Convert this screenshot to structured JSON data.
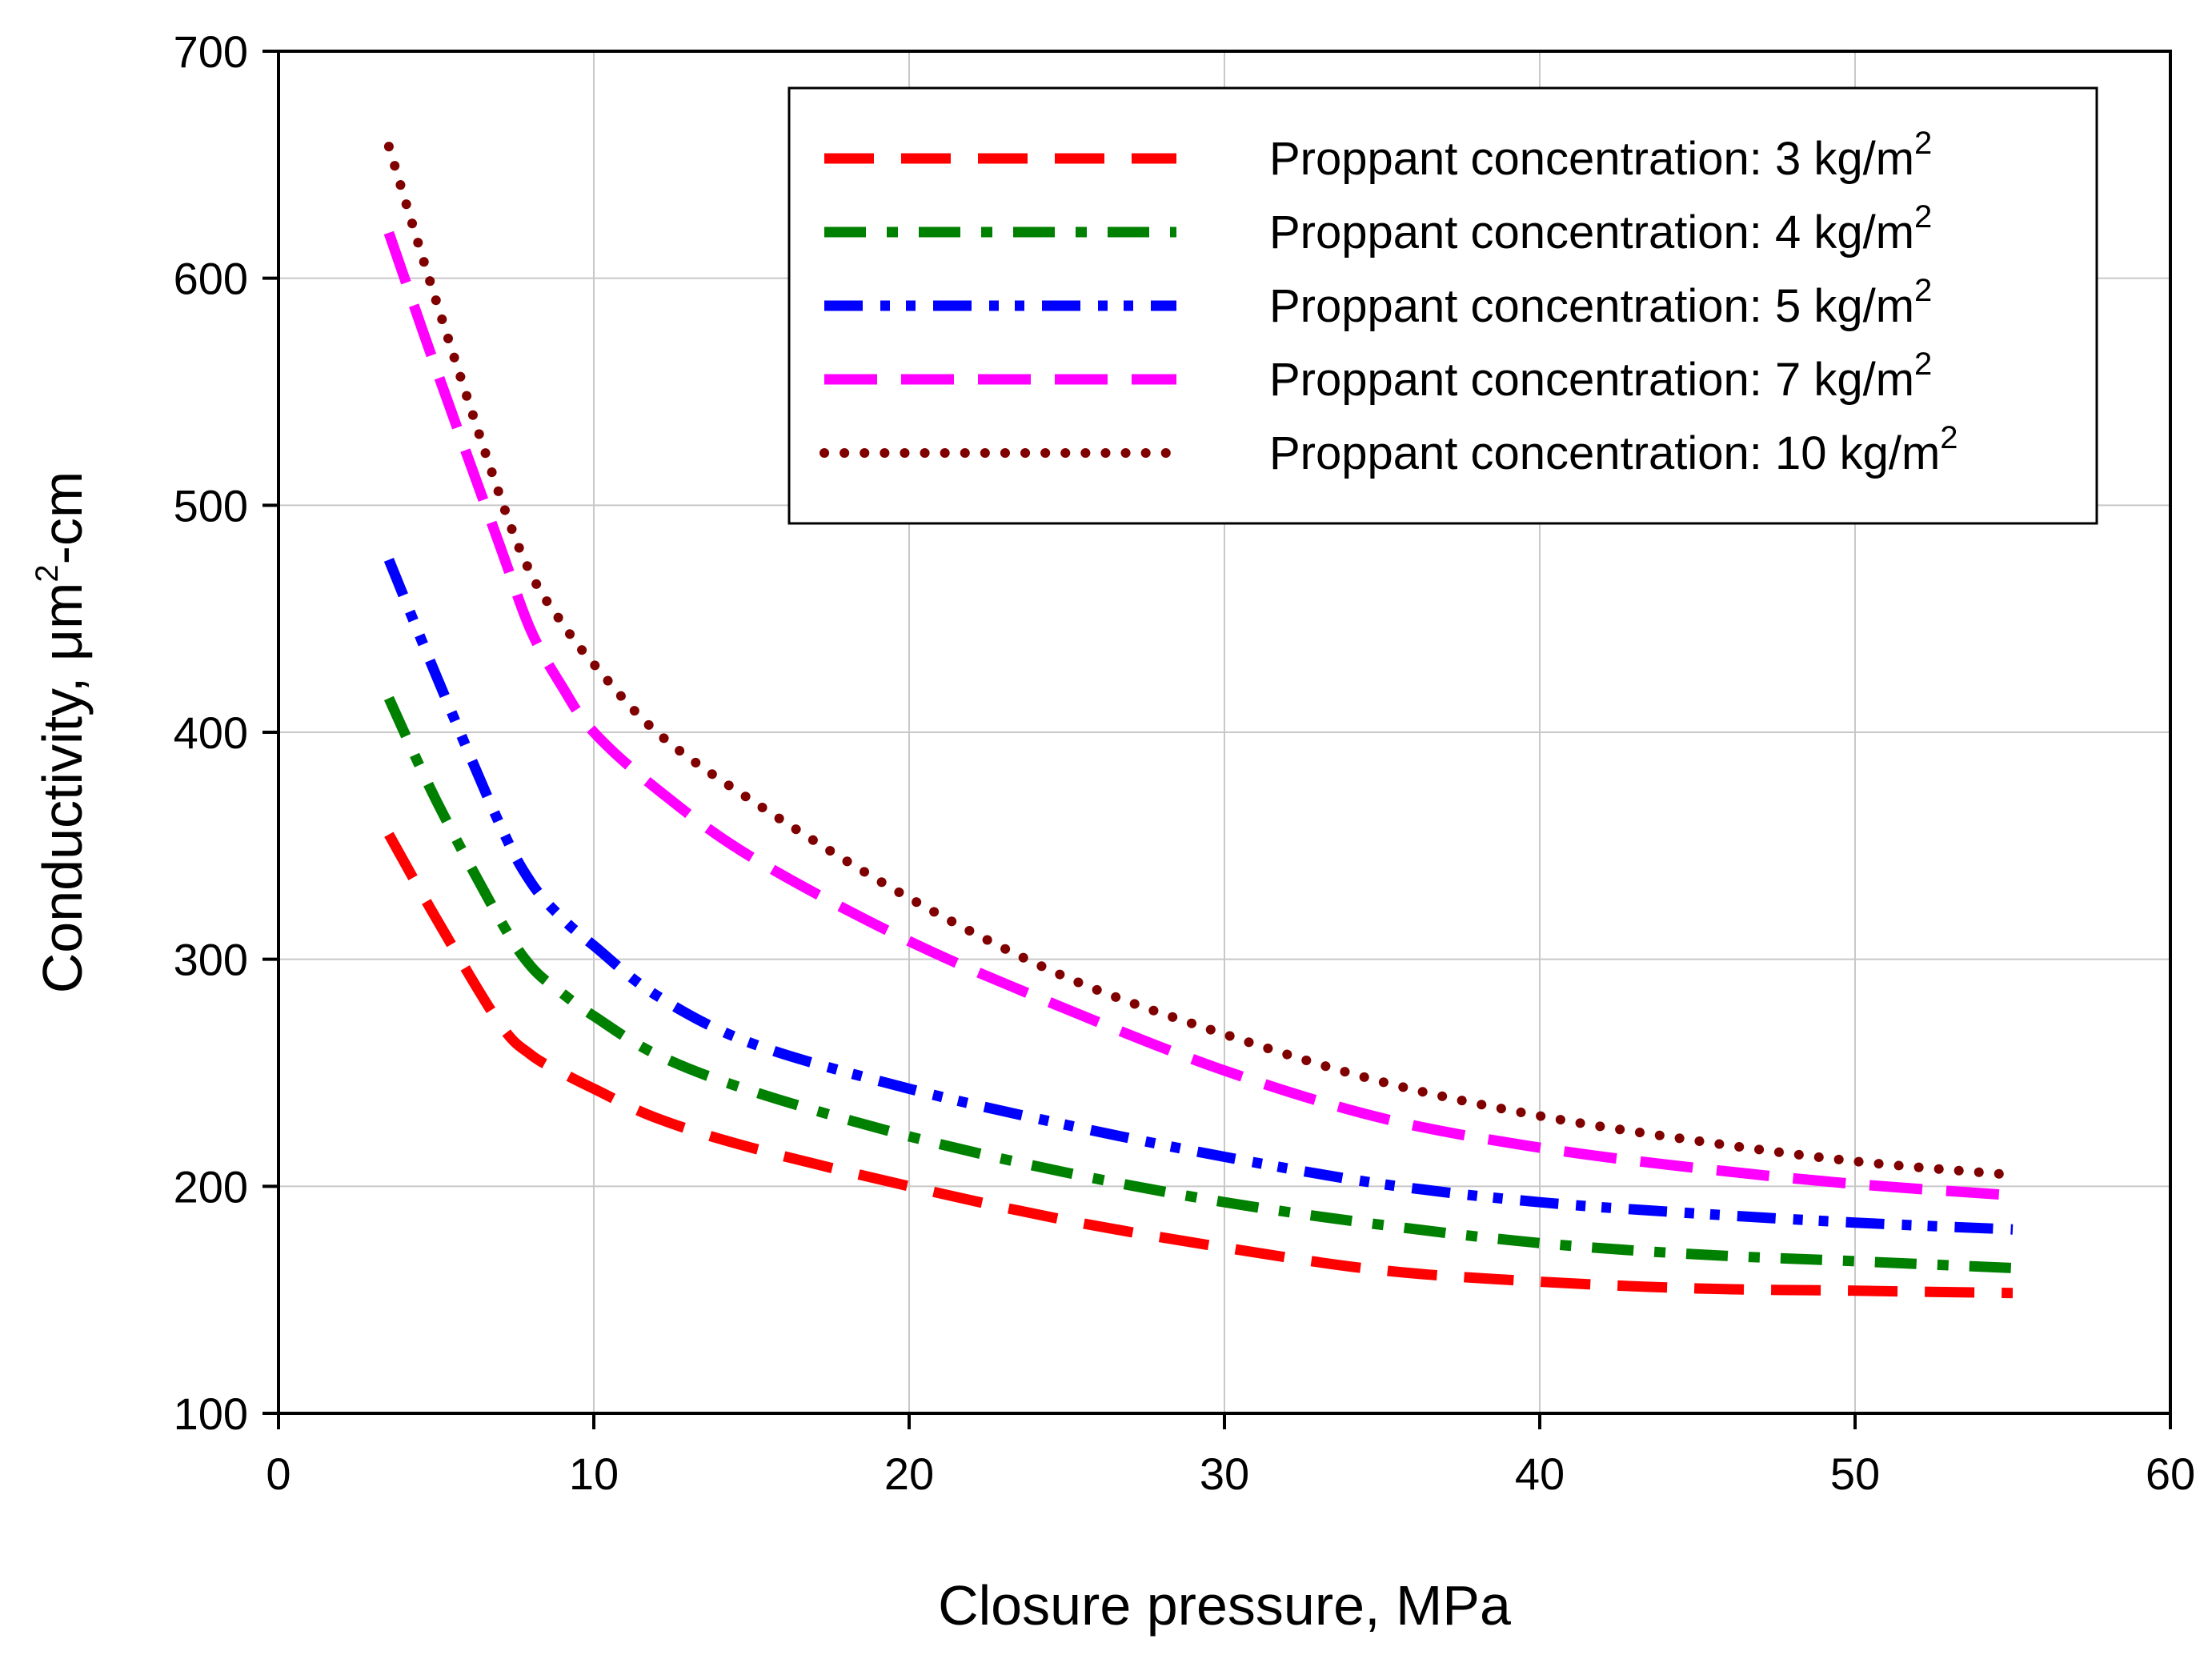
{
  "chart_data": {
    "type": "line",
    "title": "",
    "xlabel": "Closure pressure, MPa",
    "ylabel_main": "Conductivity, μm",
    "ylabel_sup": "2",
    "ylabel_tail": "-cm",
    "xlim": [
      0,
      60
    ],
    "ylim": [
      100,
      700
    ],
    "xticks": [
      0,
      10,
      20,
      30,
      40,
      50,
      60
    ],
    "yticks": [
      100,
      200,
      300,
      400,
      500,
      600,
      700
    ],
    "xtick_labels": [
      "0",
      "10",
      "20",
      "30",
      "40",
      "50",
      "60"
    ],
    "ytick_labels": [
      "100",
      "200",
      "300",
      "400",
      "500",
      "600",
      "700"
    ],
    "grid": true,
    "legend_position": "top-right",
    "x": [
      3.5,
      5,
      7,
      8,
      9,
      10,
      12,
      15,
      20,
      25,
      30,
      35,
      40,
      45,
      50,
      55
    ],
    "series": [
      {
        "name": "Proppant concentration: 3 kg/m",
        "name_sup": "2",
        "color": "#ff0000",
        "style": "dash",
        "values": [
          355,
          318,
          272,
          258,
          250,
          243,
          230,
          217,
          200,
          185,
          173,
          163,
          158,
          155,
          154,
          153
        ]
      },
      {
        "name": "Proppant concentration: 4 kg/m",
        "name_sup": "2",
        "color": "#008000",
        "style": "dashdot",
        "values": [
          415,
          370,
          318,
          297,
          285,
          275,
          258,
          242,
          222,
          206,
          193,
          183,
          175,
          170,
          167,
          164
        ]
      },
      {
        "name": "Proppant concentration: 5 kg/m",
        "name_sup": "2",
        "color": "#0000ff",
        "style": "dashdotdot",
        "values": [
          476,
          425,
          360,
          334,
          318,
          306,
          284,
          263,
          243,
          227,
          213,
          201,
          193,
          188,
          184,
          181
        ]
      },
      {
        "name": "Proppant concentration: 7 kg/m",
        "name_sup": "2",
        "color": "#ff00ff",
        "style": "longdash",
        "values": [
          620,
          560,
          483,
          445,
          420,
          400,
          375,
          345,
          308,
          278,
          251,
          230,
          217,
          208,
          201,
          196
        ]
      },
      {
        "name": "Proppant concentration: 10 kg/m",
        "name_sup": "2",
        "color": "#800000",
        "style": "dot",
        "values": [
          658,
          590,
          505,
          470,
          448,
          430,
          400,
          370,
          327,
          292,
          267,
          246,
          231,
          220,
          211,
          205
        ]
      }
    ]
  }
}
